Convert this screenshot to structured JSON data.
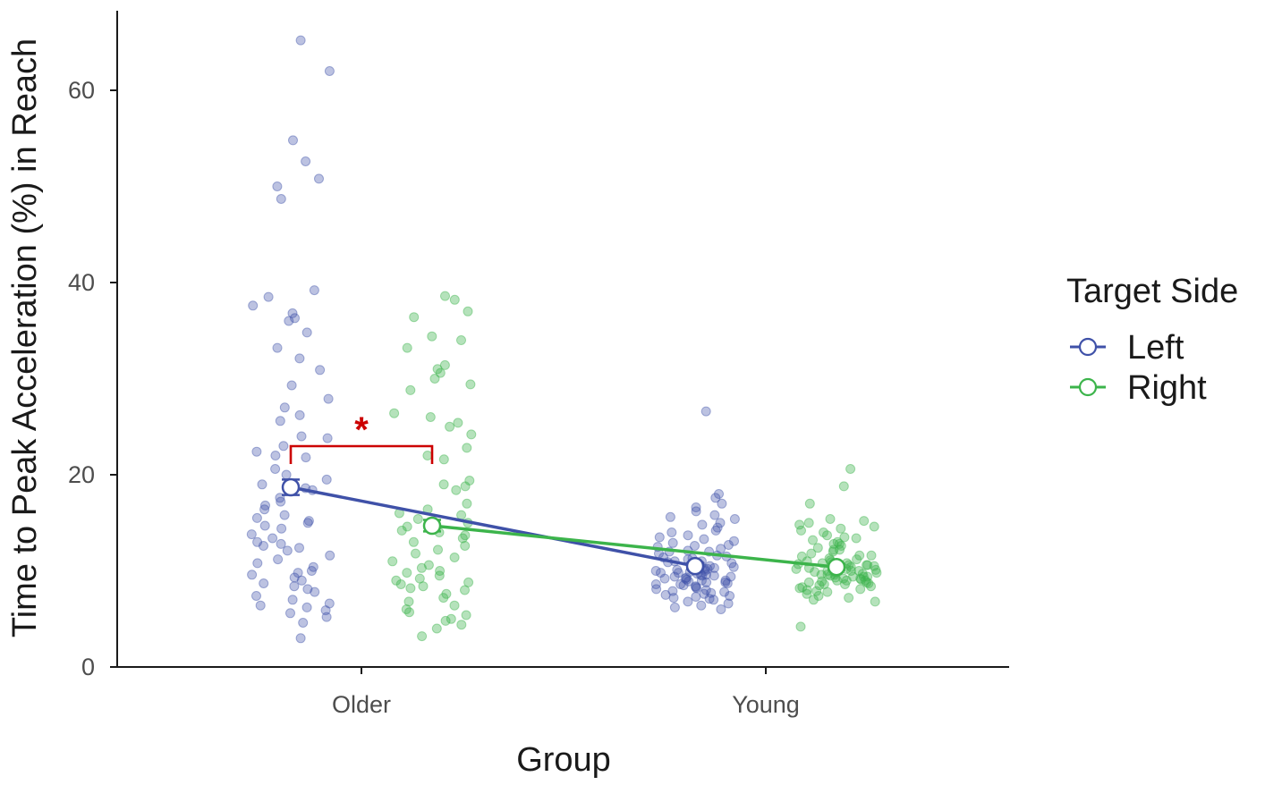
{
  "chart_data": {
    "type": "scatter",
    "xlabel": "Group",
    "ylabel": "Time to Peak Acceleration (%) in Reach",
    "categories": [
      "Older",
      "Young"
    ],
    "ylim": [
      0,
      68
    ],
    "yticks": [
      0,
      20,
      40,
      60
    ],
    "grid": false,
    "legend": {
      "title": "Target Side",
      "placement": "right",
      "entries": [
        "Left",
        "Right"
      ]
    },
    "colors": {
      "Left": "#3f51a8",
      "Right": "#3cb44b",
      "significance": "#cc0000"
    },
    "significance": {
      "label": "*",
      "between": [
        "Older Left",
        "Older Right"
      ]
    },
    "series": [
      {
        "name": "Left",
        "means": [
          18.7,
          10.5
        ],
        "se": [
          0.8,
          0.3
        ],
        "points": [
          [
            65.2,
            62.0,
            54.8,
            52.6,
            50.8,
            50.0,
            48.7,
            39.2,
            38.5,
            37.6,
            36.8,
            36.3,
            36.0,
            34.8,
            33.2,
            32.1,
            30.9,
            29.3,
            27.9,
            27.0,
            26.2,
            25.6,
            24.0,
            23.8,
            23.0,
            22.4,
            22.0,
            21.8,
            20.6,
            20.0,
            19.5,
            19.0,
            18.6,
            18.4,
            17.6,
            17.2,
            16.8,
            16.4,
            15.8,
            15.5,
            15.2,
            15.0,
            14.7,
            14.4,
            13.8,
            13.4,
            13.0,
            12.8,
            12.6,
            12.4,
            12.1,
            11.6,
            11.2,
            10.8,
            10.4,
            10.0,
            9.8,
            9.6,
            9.3,
            9.0,
            8.7,
            8.4,
            8.1,
            7.8,
            7.4,
            7.0,
            6.6,
            6.4,
            6.2,
            5.9,
            5.6,
            5.2,
            4.6,
            3.0
          ],
          [
            26.6,
            18.0,
            17.6,
            17.0,
            16.6,
            16.2,
            15.8,
            15.6,
            15.4,
            15.0,
            14.8,
            14.5,
            14.2,
            14.0,
            13.7,
            13.5,
            13.3,
            13.1,
            12.9,
            12.7,
            12.5,
            12.3,
            12.1,
            12.0,
            11.8,
            11.6,
            11.5,
            11.3,
            11.2,
            11.0,
            10.9,
            10.8,
            10.7,
            10.6,
            10.5,
            10.4,
            10.3,
            10.2,
            10.1,
            10.0,
            9.9,
            9.8,
            9.7,
            9.6,
            9.5,
            9.4,
            9.3,
            9.2,
            9.1,
            9.0,
            8.9,
            8.8,
            8.7,
            8.6,
            8.5,
            8.4,
            8.3,
            8.2,
            8.1,
            8.0,
            7.9,
            7.8,
            7.7,
            7.6,
            7.5,
            7.4,
            7.3,
            7.2,
            7.1,
            7.0,
            6.8,
            6.6,
            6.4,
            6.2,
            6.0,
            10.4,
            10.2,
            10.0,
            9.8,
            9.6,
            9.5,
            9.4,
            9.2,
            9.0,
            8.8,
            8.6,
            11.0,
            11.4,
            12.0,
            12.6
          ]
        ]
      },
      {
        "name": "Right",
        "means": [
          14.7,
          10.4
        ],
        "se": [
          0.6,
          0.3
        ],
        "points": [
          [
            38.6,
            38.2,
            37.0,
            36.4,
            34.4,
            34.0,
            33.2,
            31.4,
            31.0,
            30.6,
            30.0,
            29.4,
            28.8,
            26.4,
            26.0,
            25.4,
            25.0,
            24.2,
            22.8,
            22.0,
            21.6,
            19.4,
            19.0,
            18.8,
            18.4,
            17.0,
            16.4,
            16.0,
            15.8,
            15.4,
            15.0,
            14.6,
            14.2,
            14.0,
            13.7,
            13.4,
            13.0,
            12.6,
            12.2,
            11.8,
            11.4,
            11.0,
            10.6,
            10.3,
            10.0,
            9.8,
            9.5,
            9.2,
            9.0,
            8.8,
            8.6,
            8.4,
            8.2,
            8.0,
            7.6,
            7.2,
            6.8,
            6.4,
            6.0,
            5.7,
            5.4,
            5.0,
            4.8,
            4.4,
            4.0,
            3.2
          ],
          [
            20.6,
            18.8,
            17.0,
            15.4,
            15.0,
            14.8,
            14.4,
            14.2,
            14.0,
            13.7,
            13.5,
            13.2,
            13.0,
            12.8,
            12.6,
            12.4,
            12.2,
            12.0,
            11.8,
            11.6,
            11.5,
            11.3,
            11.1,
            11.0,
            10.9,
            10.8,
            10.7,
            10.6,
            10.5,
            10.4,
            10.3,
            10.2,
            10.1,
            10.0,
            9.9,
            9.8,
            9.7,
            9.6,
            9.5,
            9.4,
            9.3,
            9.2,
            9.1,
            9.0,
            8.9,
            8.8,
            8.7,
            8.6,
            8.5,
            8.4,
            8.3,
            8.2,
            8.1,
            8.0,
            7.9,
            7.8,
            7.6,
            7.4,
            7.2,
            7.0,
            6.8,
            4.2,
            10.6,
            10.4,
            10.2,
            10.0,
            9.8,
            9.6,
            9.4,
            9.2,
            9.0,
            8.8,
            11.2,
            11.6,
            12.2,
            12.8,
            13.4,
            14.6,
            15.2,
            9.4,
            9.0,
            8.6,
            10.8,
            10.6,
            10.0,
            9.6
          ]
        ]
      }
    ]
  }
}
